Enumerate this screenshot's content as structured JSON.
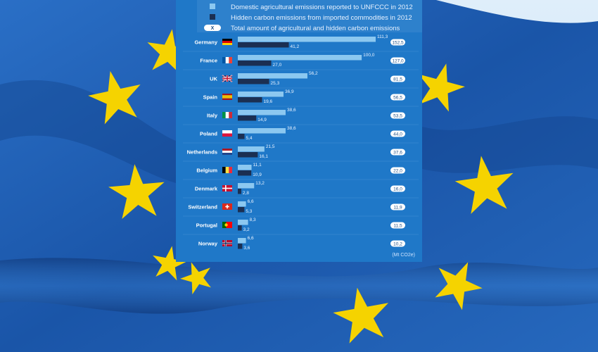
{
  "colors": {
    "domestic": "#8cc8f0",
    "hidden": "#1b2f52",
    "total_badge": "#ffffff",
    "panel": "#1f78c8",
    "flag_blue": "#1c5fb3",
    "star": "#f5d300"
  },
  "chart_data": {
    "type": "bar",
    "orientation": "horizontal",
    "unit": "(Mt CO2e)",
    "legend": {
      "placement": "top",
      "items": [
        {
          "marker": "",
          "label": "Domestic agricultural emissions reported to UNFCCC in 2012"
        },
        {
          "marker": "",
          "label": "Hidden carbon emissions from imported commodities in 2012"
        },
        {
          "marker": "X",
          "label": "Total amount of agricultural and hidden carbon emissions"
        }
      ]
    },
    "categories": [
      "Germany",
      "France",
      "UK",
      "Spain",
      "Italy",
      "Poland",
      "Netherlands",
      "Belgium",
      "Denmark",
      "Switzerland",
      "Portugal",
      "Norway"
    ],
    "series": [
      {
        "name": "Domestic agricultural emissions reported to UNFCCC in 2012",
        "values": [
          111.3,
          100.0,
          56.2,
          36.9,
          38.6,
          38.6,
          21.5,
          11.1,
          13.2,
          6.6,
          8.3,
          6.6
        ],
        "labels": [
          "111,3",
          "100,0",
          "56,2",
          "36,9",
          "38,6",
          "38,6",
          "21,5",
          "11,1",
          "13,2",
          "6,6",
          "8,3",
          "6,6"
        ]
      },
      {
        "name": "Hidden carbon emissions from imported commodities in 2012",
        "values": [
          41.2,
          27.0,
          25.3,
          19.6,
          14.9,
          5.4,
          16.1,
          10.9,
          2.8,
          5.3,
          3.2,
          3.6
        ],
        "labels": [
          "41,2",
          "27,0",
          "25,3",
          "19,6",
          "14,9",
          "5,4",
          "16,1",
          "10,9",
          "2,8",
          "5,3",
          "3,2",
          "3,6"
        ]
      }
    ],
    "totals": [
      152.5,
      127.0,
      81.5,
      56.5,
      53.5,
      44.0,
      37.6,
      22.0,
      16.0,
      11.9,
      11.5,
      10.2
    ],
    "total_labels": [
      "152,5",
      "127,0",
      "81,5",
      "56,5",
      "53,5",
      "44,0",
      "37,6",
      "22,0",
      "16,0",
      "11,9",
      "11,5",
      "10,2"
    ],
    "flags": [
      "germany-flag-icon",
      "france-flag-icon",
      "uk-flag-icon",
      "spain-flag-icon",
      "italy-flag-icon",
      "poland-flag-icon",
      "netherlands-flag-icon",
      "belgium-flag-icon",
      "denmark-flag-icon",
      "switzerland-flag-icon",
      "portugal-flag-icon",
      "norway-flag-icon"
    ]
  }
}
